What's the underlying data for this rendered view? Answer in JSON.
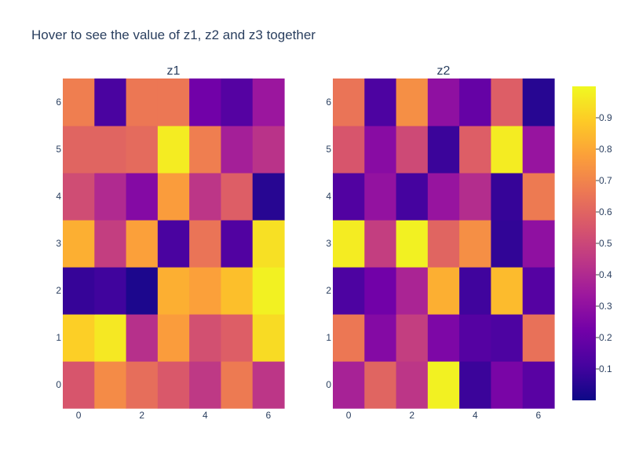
{
  "chart_data": {
    "type": "heatmap",
    "title": "Hover to see the value of z1, z2 and z3 together",
    "x": [
      0,
      1,
      2,
      3,
      4,
      5,
      6
    ],
    "y": [
      0,
      1,
      2,
      3,
      4,
      5,
      6
    ],
    "x_tick_labels": [
      "0",
      "2",
      "4",
      "6"
    ],
    "y_tick_labels": [
      "0",
      "1",
      "2",
      "3",
      "4",
      "5",
      "6"
    ],
    "colorscale": "plasma",
    "zmin": 0.0,
    "zmax": 1.0,
    "colorbar_ticks": [
      "0.1",
      "0.2",
      "0.3",
      "0.4",
      "0.5",
      "0.6",
      "0.7",
      "0.8",
      "0.9"
    ],
    "panels": [
      {
        "name": "z1",
        "z": [
          [
            0.55,
            0.72,
            0.63,
            0.56,
            0.45,
            0.67,
            0.44
          ],
          [
            0.9,
            0.96,
            0.42,
            0.77,
            0.53,
            0.58,
            0.93
          ],
          [
            0.08,
            0.1,
            0.03,
            0.82,
            0.78,
            0.86,
            0.98
          ],
          [
            0.82,
            0.47,
            0.78,
            0.12,
            0.65,
            0.14,
            0.94
          ],
          [
            0.52,
            0.4,
            0.27,
            0.77,
            0.44,
            0.58,
            0.05
          ],
          [
            0.6,
            0.6,
            0.62,
            0.97,
            0.68,
            0.36,
            0.43
          ],
          [
            0.68,
            0.12,
            0.66,
            0.66,
            0.22,
            0.15,
            0.33
          ]
        ]
      },
      {
        "name": "z2",
        "z": [
          [
            0.37,
            0.6,
            0.44,
            0.98,
            0.09,
            0.24,
            0.16
          ],
          [
            0.66,
            0.27,
            0.47,
            0.25,
            0.15,
            0.13,
            0.64
          ],
          [
            0.13,
            0.22,
            0.38,
            0.82,
            0.1,
            0.85,
            0.15
          ],
          [
            0.97,
            0.47,
            0.98,
            0.6,
            0.73,
            0.07,
            0.3
          ],
          [
            0.14,
            0.31,
            0.11,
            0.32,
            0.41,
            0.08,
            0.67
          ],
          [
            0.55,
            0.28,
            0.51,
            0.09,
            0.58,
            0.97,
            0.32
          ],
          [
            0.65,
            0.13,
            0.73,
            0.3,
            0.19,
            0.58,
            0.05
          ]
        ]
      }
    ]
  }
}
